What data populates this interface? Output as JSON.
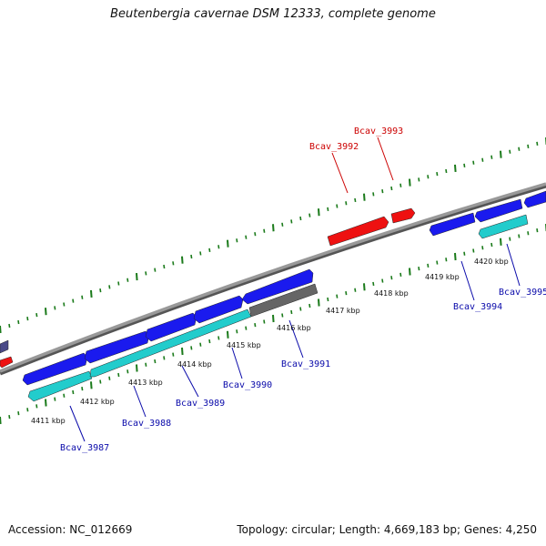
{
  "title": "Beutenbergia cavernae DSM 12333, complete genome",
  "footer": {
    "accession": "Accession: NC_012669",
    "stats": "Topology: circular; Length: 4,669,183 bp; Genes: 4,250"
  },
  "colors": {
    "forward_gene": "#1a1aee",
    "reverse_gene": "#22cccc",
    "highlight_gene": "#ee1111",
    "pseudo_gene": "#666666",
    "backbone": "#888888",
    "ticks": "#1a7a1a",
    "label_blue": "#0a0aaa",
    "label_red": "#cc0000"
  },
  "scale_labels": [
    "4411 kbp",
    "4412 kbp",
    "4413 kbp",
    "4414 kbp",
    "4415 kbp",
    "4416 kbp",
    "4417 kbp",
    "4418 kbp",
    "4419 kbp",
    "4420 kbp"
  ],
  "gene_labels": [
    {
      "text": "Bcav_3987",
      "color": "blue"
    },
    {
      "text": "Bcav_3988",
      "color": "blue"
    },
    {
      "text": "Bcav_3989",
      "color": "blue"
    },
    {
      "text": "Bcav_3990",
      "color": "blue"
    },
    {
      "text": "Bcav_3991",
      "color": "blue"
    },
    {
      "text": "Bcav_3992",
      "color": "red"
    },
    {
      "text": "Bcav_3993",
      "color": "red"
    },
    {
      "text": "Bcav_3994",
      "color": "blue"
    },
    {
      "text": "Bcav_3995",
      "color": "blue"
    }
  ]
}
